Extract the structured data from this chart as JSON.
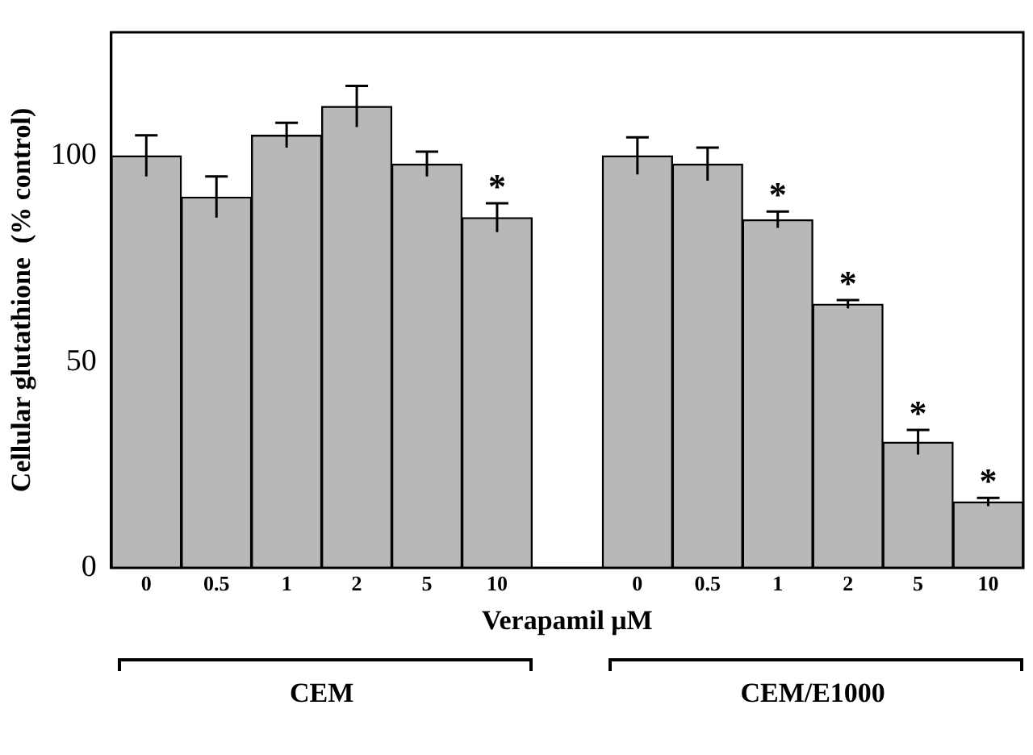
{
  "chart_data": {
    "type": "bar",
    "xlabel": "Verapamil μM",
    "ylabel": "Cellular glutathione  (% control)",
    "categories": [
      "0",
      "0.5",
      "1",
      "2",
      "5",
      "10",
      null,
      "0",
      "0.5",
      "1",
      "2",
      "5",
      "10"
    ],
    "values": [
      100,
      90,
      105,
      112,
      98,
      85,
      null,
      100,
      98,
      84.5,
      64,
      30.5,
      16
    ],
    "errors": [
      5,
      5,
      3,
      5,
      3,
      3.5,
      null,
      4.5,
      4,
      2,
      1,
      3,
      1
    ],
    "value_labels": [
      null,
      null,
      null,
      null,
      null,
      "*",
      null,
      null,
      null,
      "*",
      "*",
      "*",
      "*"
    ],
    "color": "#b8b8b8",
    "ylim": [
      0,
      130
    ],
    "yticks": [
      0,
      50,
      100
    ],
    "grid": false,
    "legend": false,
    "annotations": [
      "CEM",
      "CEM/E1000"
    ]
  }
}
